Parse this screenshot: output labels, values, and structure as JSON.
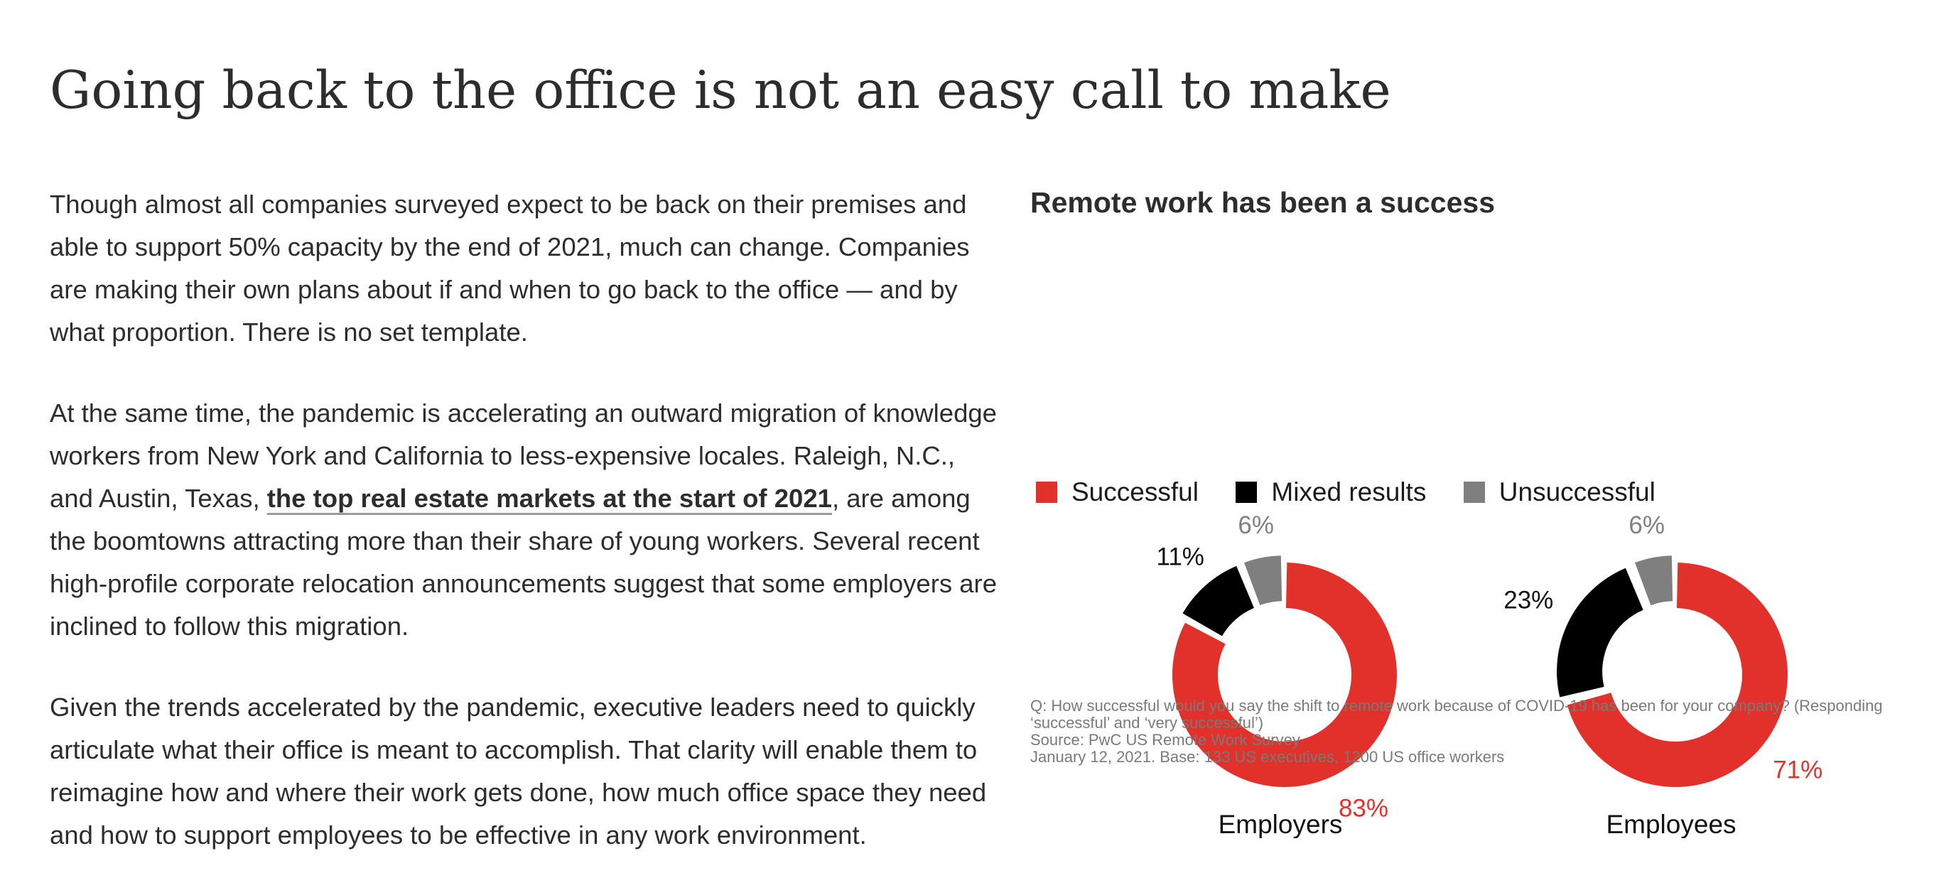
{
  "page": {
    "heading": "Going back to the office is not an easy call to make"
  },
  "article": {
    "p1": "Though almost all companies surveyed expect to be back on their premises and able to support 50% capacity by the end of 2021, much can change. Companies are making their own plans about if and when to go back to the office — and by what proportion. There is no set template.",
    "p2_before": "At the same time, the pandemic is accelerating an outward migration of knowledge workers from New York and California to less-expensive locales. Raleigh, N.C., and Austin, Texas, ",
    "p2_link": "the top real estate markets at the start of 2021",
    "p2_after": ", are among the boomtowns attracting more than their share of young workers. Several recent high-profile corporate relocation announcements suggest that some employers are inclined to follow this migration.",
    "p3": "Given the trends accelerated by the pandemic, executive leaders need to quickly articulate what their office is meant to accomplish. That clarity will enable them to reimagine how and where their work gets done, how much office space they need and how to support employees to be effective in any work environment."
  },
  "colors": {
    "successful": "#e2312a",
    "mixed": "#000000",
    "unsuccessful": "#7f7f7f",
    "text": "#2d2d2d"
  },
  "chart_data": {
    "type": "pie",
    "title": "Remote work has been a success",
    "legend": [
      {
        "label": "Successful",
        "color": "#e2312a"
      },
      {
        "label": "Mixed results",
        "color": "#000000"
      },
      {
        "label": "Unsuccessful",
        "color": "#7f7f7f"
      }
    ],
    "legend_position": "top",
    "categories": [
      "Successful",
      "Mixed results",
      "Unsuccessful"
    ],
    "series": [
      {
        "name": "Employers",
        "values": [
          83,
          11,
          6
        ],
        "labels": [
          "83%",
          "11%",
          "6%"
        ]
      },
      {
        "name": "Employees",
        "values": [
          71,
          23,
          6
        ],
        "labels": [
          "71%",
          "23%",
          "6%"
        ]
      }
    ],
    "footnote": [
      "Q: How successful would you say the shift to remote work because of COVID-19 has been for your company? (Responding ‘successful’ and ‘very successful’)",
      "Source: PwC US Remote Work Survey",
      "January 12, 2021. Base: 133 US executives, 1200 US office workers"
    ]
  }
}
